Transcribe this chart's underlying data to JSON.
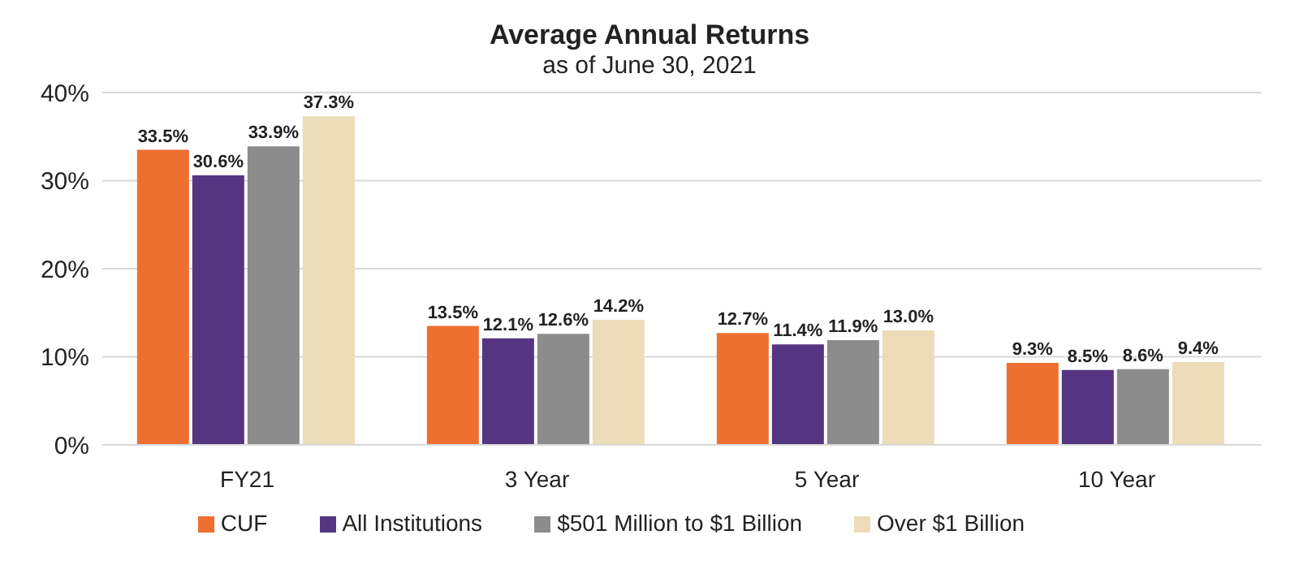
{
  "chart_data": {
    "type": "bar",
    "title": "Average Annual Returns",
    "subtitle": "as of June 30, 2021",
    "categories": [
      "FY21",
      "3 Year",
      "5 Year",
      "10 Year"
    ],
    "series": [
      {
        "name": "CUF",
        "color": "#ed7031",
        "values": [
          33.5,
          13.5,
          12.7,
          9.3
        ],
        "value_labels": [
          "33.5%",
          "13.5%",
          "12.7%",
          "9.3%"
        ]
      },
      {
        "name": "All Institutions",
        "color": "#553581",
        "values": [
          30.6,
          12.1,
          11.4,
          8.5
        ],
        "value_labels": [
          "30.6%",
          "12.1%",
          "11.4%",
          "8.5%"
        ]
      },
      {
        "name": "$501 Million to $1 Billion",
        "color": "#8c8c8c",
        "values": [
          33.9,
          12.6,
          11.9,
          8.6
        ],
        "value_labels": [
          "33.9%",
          "12.6%",
          "11.9%",
          "8.6%"
        ]
      },
      {
        "name": "Over $1 Billion",
        "color": "#ecdcb8",
        "values": [
          37.3,
          14.2,
          13.0,
          9.4
        ],
        "value_labels": [
          "37.3%",
          "14.2%",
          "13.0%",
          "9.4%"
        ]
      }
    ],
    "ylim": [
      0,
      40
    ],
    "yticks": [
      {
        "value": 0,
        "label": "0%"
      },
      {
        "value": 10,
        "label": "10%"
      },
      {
        "value": 20,
        "label": "20%"
      },
      {
        "value": 30,
        "label": "30%"
      },
      {
        "value": 40,
        "label": "40%"
      }
    ],
    "grid": "y",
    "legend": "bottom"
  }
}
